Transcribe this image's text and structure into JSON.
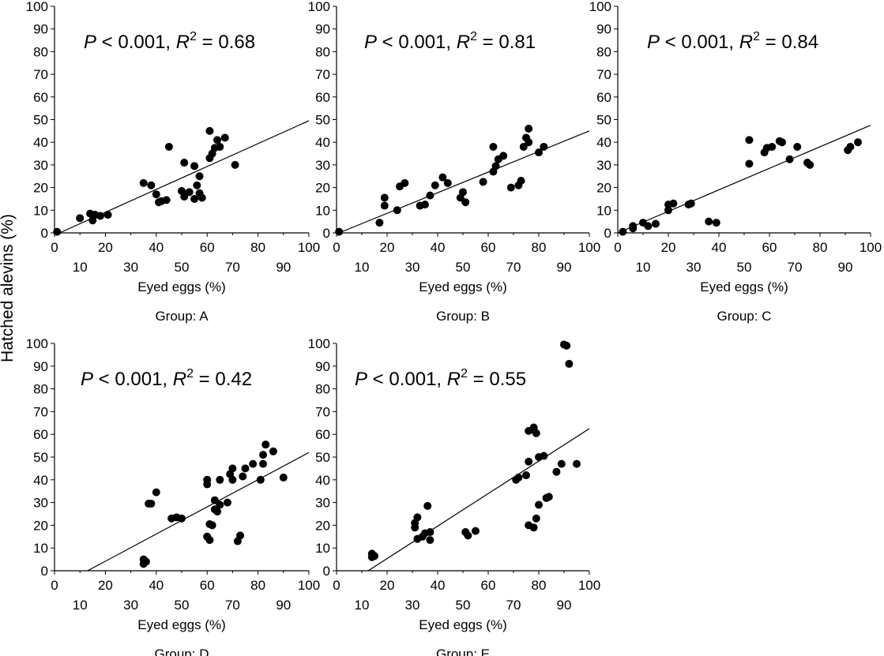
{
  "figure": {
    "ylabel": "Hatched alevins (%)"
  },
  "chart_data": [
    {
      "type": "scatter",
      "group_label": "Group: A",
      "xlabel": "Eyed eggs (%)",
      "xlim": [
        0,
        100
      ],
      "ylim": [
        0,
        100
      ],
      "x_ticks_major": [
        0,
        20,
        40,
        60,
        80,
        100
      ],
      "x_ticks_minor": [
        10,
        30,
        50,
        70,
        90
      ],
      "y_ticks": [
        0,
        10,
        20,
        30,
        40,
        50,
        60,
        70,
        80,
        90,
        100
      ],
      "stat": {
        "p": "P",
        "p_rest": " < 0.001, ",
        "r": "R",
        "r_exp": "2",
        "r_rest": " = 0.68"
      },
      "fit": {
        "x": [
          2,
          100
        ],
        "y": [
          0,
          49.5
        ]
      },
      "points": [
        [
          1,
          0.5
        ],
        [
          10,
          6.5
        ],
        [
          14,
          8.5
        ],
        [
          15,
          5.5
        ],
        [
          16,
          8
        ],
        [
          18,
          7.5
        ],
        [
          21,
          8
        ],
        [
          35,
          22
        ],
        [
          38,
          21
        ],
        [
          40,
          17
        ],
        [
          41,
          13.5
        ],
        [
          42,
          14
        ],
        [
          44,
          14.5
        ],
        [
          45,
          38
        ],
        [
          50,
          18.5
        ],
        [
          51,
          16
        ],
        [
          51,
          31
        ],
        [
          53,
          18
        ],
        [
          55,
          15
        ],
        [
          55,
          29.5
        ],
        [
          56,
          21
        ],
        [
          57,
          25
        ],
        [
          57,
          17.5
        ],
        [
          58,
          15.5
        ],
        [
          61,
          45
        ],
        [
          61,
          33
        ],
        [
          62,
          35
        ],
        [
          63,
          37.5
        ],
        [
          64,
          41
        ],
        [
          65,
          38
        ],
        [
          67,
          42
        ],
        [
          71,
          30
        ]
      ]
    },
    {
      "type": "scatter",
      "group_label": "Group: B",
      "xlabel": "Eyed eggs (%)",
      "xlim": [
        0,
        100
      ],
      "ylim": [
        0,
        100
      ],
      "x_ticks_major": [
        0,
        20,
        40,
        60,
        80,
        100
      ],
      "x_ticks_minor": [
        10,
        30,
        50,
        70,
        90
      ],
      "y_ticks": [
        0,
        10,
        20,
        30,
        40,
        50,
        60,
        70,
        80,
        90,
        100
      ],
      "stat": {
        "p": "P",
        "p_rest": " < 0.001, ",
        "r": "R",
        "r_exp": "2",
        "r_rest": " = 0.81"
      },
      "fit": {
        "x": [
          1,
          100
        ],
        "y": [
          0,
          45
        ]
      },
      "points": [
        [
          1,
          0.5
        ],
        [
          17,
          4.5
        ],
        [
          19,
          12
        ],
        [
          19,
          15.5
        ],
        [
          24,
          10
        ],
        [
          25,
          20.5
        ],
        [
          27,
          22
        ],
        [
          33,
          12
        ],
        [
          35,
          12.5
        ],
        [
          37,
          16.5
        ],
        [
          39,
          21
        ],
        [
          42,
          24.5
        ],
        [
          44,
          22
        ],
        [
          49,
          15.5
        ],
        [
          50,
          18
        ],
        [
          51,
          13.5
        ],
        [
          58,
          22.5
        ],
        [
          62,
          27
        ],
        [
          62,
          38
        ],
        [
          63,
          29.5
        ],
        [
          64,
          32.5
        ],
        [
          66,
          34
        ],
        [
          69,
          20
        ],
        [
          72,
          21
        ],
        [
          73,
          23
        ],
        [
          74,
          38
        ],
        [
          75,
          42
        ],
        [
          76,
          46
        ],
        [
          76,
          40
        ],
        [
          80,
          35.5
        ],
        [
          82,
          38
        ]
      ]
    },
    {
      "type": "scatter",
      "group_label": "Group: C",
      "xlabel": "Eyed eggs (%)",
      "xlim": [
        0,
        100
      ],
      "ylim": [
        0,
        100
      ],
      "x_ticks_major": [
        0,
        20,
        40,
        60,
        80,
        100
      ],
      "x_ticks_minor": [
        10,
        30,
        50,
        70,
        90
      ],
      "y_ticks": [
        0,
        10,
        20,
        30,
        40,
        50,
        60,
        70,
        80,
        90,
        100
      ],
      "stat": {
        "p": "P",
        "p_rest": " < 0.001, ",
        "r": "R",
        "r_exp": "2",
        "r_rest": " = 0.84"
      },
      "fit": {
        "x": [
          0,
          100
        ],
        "y": [
          0,
          47.5
        ]
      },
      "points": [
        [
          2,
          0.5
        ],
        [
          6,
          2
        ],
        [
          6,
          3
        ],
        [
          10,
          4.5
        ],
        [
          12,
          3
        ],
        [
          15,
          4
        ],
        [
          20,
          10
        ],
        [
          20,
          12.5
        ],
        [
          22,
          13
        ],
        [
          28,
          12.5
        ],
        [
          29,
          13
        ],
        [
          36,
          5
        ],
        [
          39,
          4.5
        ],
        [
          52,
          30.5
        ],
        [
          52,
          41
        ],
        [
          58,
          35.5
        ],
        [
          59,
          37.5
        ],
        [
          61,
          38
        ],
        [
          64,
          40.5
        ],
        [
          65,
          40
        ],
        [
          68,
          32.5
        ],
        [
          71,
          38
        ],
        [
          75,
          31
        ],
        [
          76,
          30
        ],
        [
          91,
          36.5
        ],
        [
          92,
          38
        ],
        [
          95,
          40
        ]
      ]
    },
    {
      "type": "scatter",
      "group_label": "Group: D",
      "xlabel": "Eyed eggs (%)",
      "xlim": [
        0,
        100
      ],
      "ylim": [
        0,
        100
      ],
      "x_ticks_major": [
        0,
        20,
        40,
        60,
        80,
        100
      ],
      "x_ticks_minor": [
        10,
        30,
        50,
        70,
        90
      ],
      "y_ticks": [
        0,
        10,
        20,
        30,
        40,
        50,
        60,
        70,
        80,
        90,
        100
      ],
      "stat": {
        "p": "P",
        "p_rest": " < 0.001, ",
        "r": "R",
        "r_exp": "2",
        "r_rest": " = 0.42"
      },
      "fit": {
        "x": [
          13,
          100
        ],
        "y": [
          0,
          52
        ]
      },
      "points": [
        [
          35,
          3
        ],
        [
          35,
          5
        ],
        [
          36,
          4
        ],
        [
          37,
          29.5
        ],
        [
          38,
          29.5
        ],
        [
          40,
          34.5
        ],
        [
          46,
          23
        ],
        [
          48,
          23.5
        ],
        [
          50,
          23
        ],
        [
          60,
          38
        ],
        [
          60,
          40
        ],
        [
          60,
          15
        ],
        [
          61,
          13.5
        ],
        [
          61,
          20.5
        ],
        [
          62,
          20
        ],
        [
          63,
          27
        ],
        [
          63,
          31
        ],
        [
          64,
          26
        ],
        [
          65,
          40
        ],
        [
          65,
          29
        ],
        [
          68,
          30
        ],
        [
          69,
          42.5
        ],
        [
          70,
          45
        ],
        [
          70,
          40
        ],
        [
          72,
          13
        ],
        [
          73,
          15.5
        ],
        [
          74,
          41.5
        ],
        [
          75,
          45
        ],
        [
          78,
          47
        ],
        [
          81,
          40
        ],
        [
          82,
          47
        ],
        [
          82,
          51
        ],
        [
          83,
          55.5
        ],
        [
          86,
          52.5
        ],
        [
          90,
          41
        ]
      ]
    },
    {
      "type": "scatter",
      "group_label": "Group: E",
      "xlabel": "Eyed eggs (%)",
      "xlim": [
        0,
        100
      ],
      "ylim": [
        0,
        100
      ],
      "x_ticks_major": [
        0,
        20,
        40,
        60,
        80,
        100
      ],
      "x_ticks_minor": [
        10,
        30,
        50,
        70,
        90
      ],
      "y_ticks": [
        0,
        10,
        20,
        30,
        40,
        50,
        60,
        70,
        80,
        90,
        100
      ],
      "stat": {
        "p": "P",
        "p_rest": " < 0.001, ",
        "r": "R",
        "r_exp": "2",
        "r_rest": " = 0.55"
      },
      "fit": {
        "x": [
          12.5,
          100
        ],
        "y": [
          0,
          62.5
        ]
      },
      "points": [
        [
          14,
          7.5
        ],
        [
          14,
          6
        ],
        [
          15,
          6.5
        ],
        [
          31,
          19
        ],
        [
          31,
          21
        ],
        [
          32,
          23.5
        ],
        [
          32,
          14
        ],
        [
          34,
          15
        ],
        [
          35,
          16.5
        ],
        [
          36,
          28.5
        ],
        [
          37,
          13.5
        ],
        [
          37,
          17
        ],
        [
          51,
          17
        ],
        [
          52,
          15.5
        ],
        [
          55,
          17.5
        ],
        [
          71,
          40
        ],
        [
          72,
          41
        ],
        [
          75,
          42
        ],
        [
          76,
          48
        ],
        [
          76,
          20
        ],
        [
          76,
          61.5
        ],
        [
          78,
          62
        ],
        [
          78,
          63
        ],
        [
          79,
          60.5
        ],
        [
          79,
          23
        ],
        [
          80,
          50
        ],
        [
          80,
          29
        ],
        [
          78,
          19
        ],
        [
          82,
          50.5
        ],
        [
          83,
          32
        ],
        [
          84,
          32.5
        ],
        [
          87,
          43.5
        ],
        [
          89,
          47
        ],
        [
          90,
          99.5
        ],
        [
          91,
          99
        ],
        [
          92,
          91
        ],
        [
          95,
          47
        ]
      ]
    }
  ]
}
